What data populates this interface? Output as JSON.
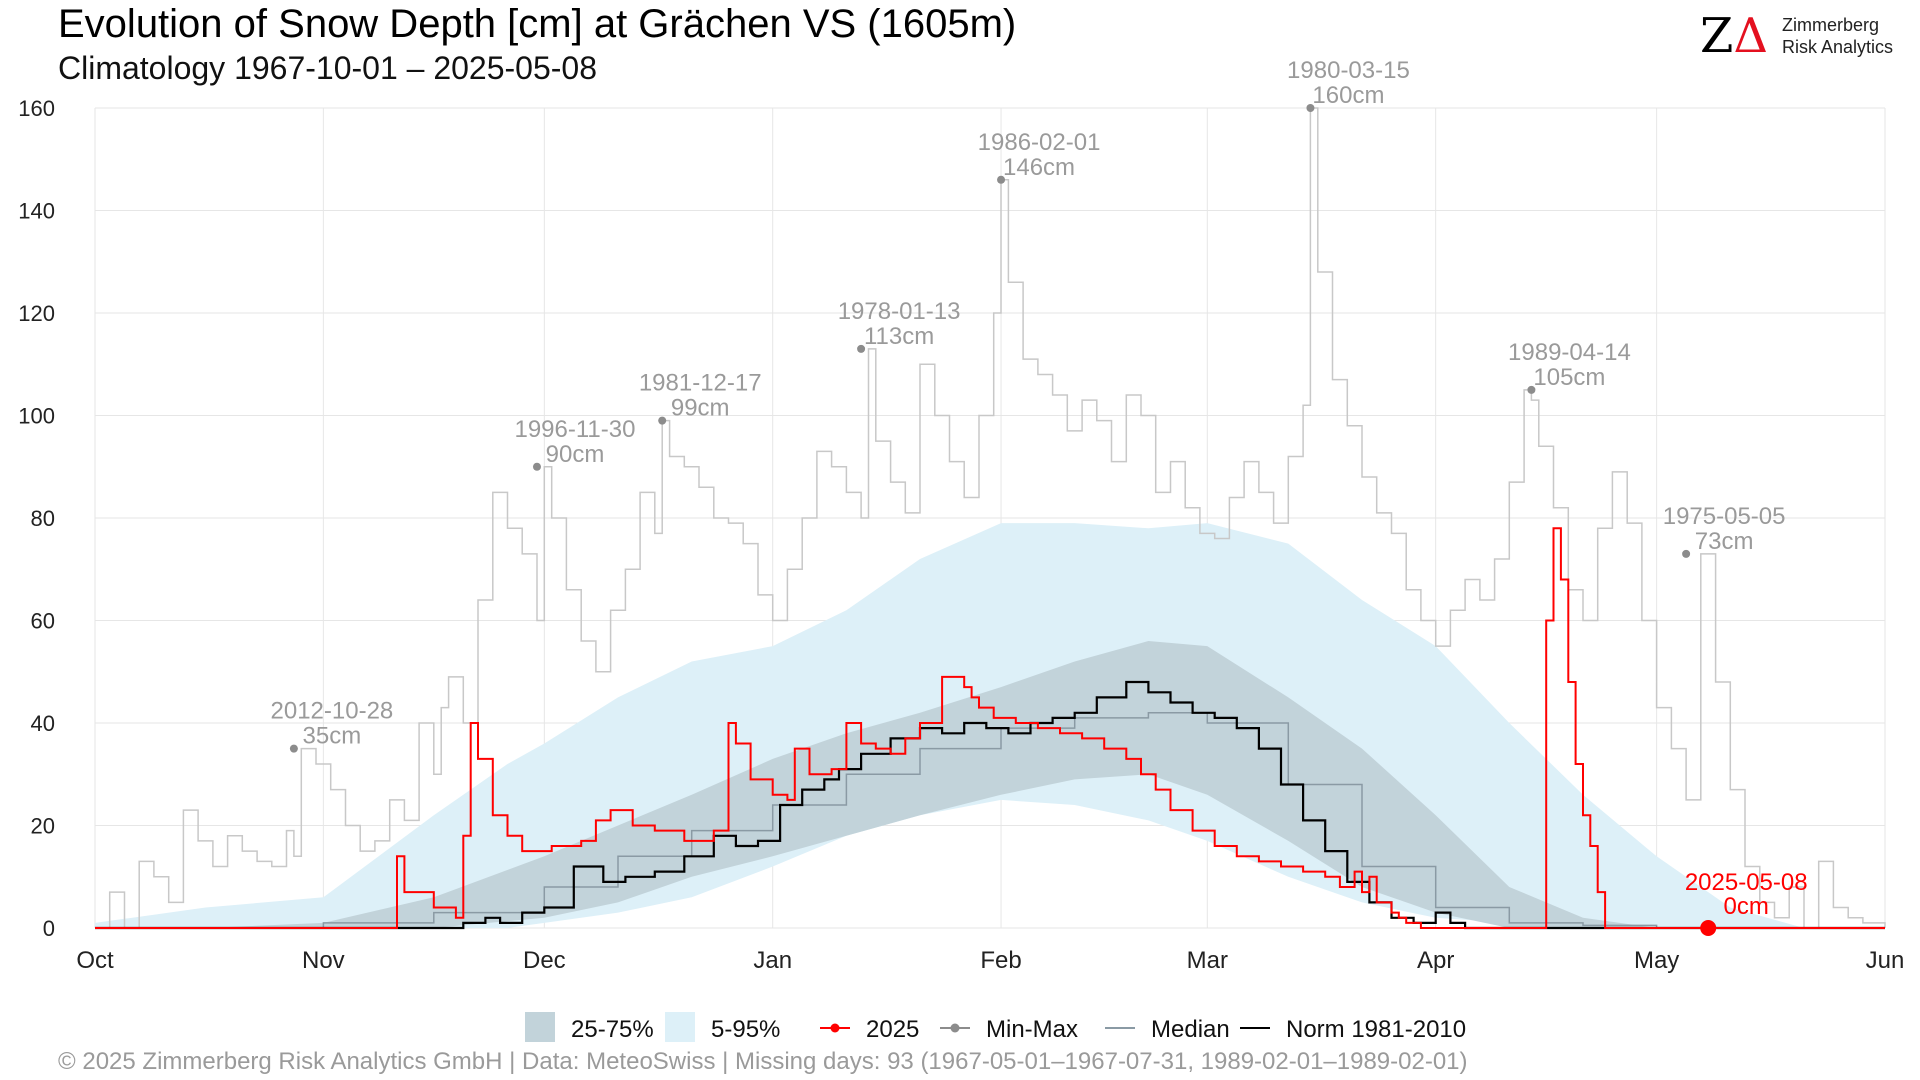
{
  "header": {
    "title": "Evolution of Snow Depth [cm] at Grächen  VS (1605m)",
    "subtitle": "Climatology 1967-10-01 – 2025-05-08"
  },
  "logo": {
    "mark_z": "Z",
    "mark_delta": "Δ",
    "line1": "Zimmerberg",
    "line2": "Risk Analytics"
  },
  "footer": "©  2025 Zimmerberg Risk Analytics GmbH | Data: MeteoSwiss | Missing days: 93 (1967-05-01–1967-07-31, 1989-02-01–1989-02-01)",
  "colors": {
    "band_2575": "#c2d3da",
    "band_595": "#ddf0f8",
    "current": "#ff0000",
    "minmax": "#c8c8c8",
    "minmax_dot": "#8c8c8c",
    "median": "#8a9aa4",
    "norm": "#000000",
    "annotation": "#9a9a9a",
    "grid": "#e6e6e6"
  },
  "chart_data": {
    "type": "line",
    "y_axis": {
      "min": 0,
      "max": 160,
      "ticks": [
        0,
        20,
        40,
        60,
        80,
        100,
        120,
        140,
        160
      ]
    },
    "x_axis": {
      "min": 0,
      "max": 243,
      "ticks": [
        {
          "label": "Oct",
          "day": 0
        },
        {
          "label": "Nov",
          "day": 31
        },
        {
          "label": "Dec",
          "day": 61
        },
        {
          "label": "Jan",
          "day": 92
        },
        {
          "label": "Feb",
          "day": 123
        },
        {
          "label": "Mar",
          "day": 151
        },
        {
          "label": "Apr",
          "day": 182
        },
        {
          "label": "May",
          "day": 212
        },
        {
          "label": "Jun",
          "day": 243
        }
      ]
    },
    "legend": {
      "placement": "bottom",
      "items": [
        {
          "label": "25-75%",
          "kind": "band",
          "color": "#c2d3da"
        },
        {
          "label": "5-95%",
          "kind": "band",
          "color": "#ddf0f8"
        },
        {
          "label": "2025",
          "kind": "line-dot",
          "color": "#ff0000"
        },
        {
          "label": "Min-Max",
          "kind": "line-dot",
          "color": "#8c8c8c"
        },
        {
          "label": "Median",
          "kind": "line",
          "color": "#8a9aa4"
        },
        {
          "label": "Norm 1981-2010",
          "kind": "line",
          "color": "#000000"
        }
      ]
    },
    "annotations": [
      {
        "date": "2012-10-28",
        "value": "35cm",
        "day": 27,
        "y": 35
      },
      {
        "date": "1996-11-30",
        "value": "90cm",
        "day": 60,
        "y": 90
      },
      {
        "date": "1981-12-17",
        "value": "99cm",
        "day": 77,
        "y": 99
      },
      {
        "date": "1978-01-13",
        "value": "113cm",
        "day": 104,
        "y": 113
      },
      {
        "date": "1986-02-01",
        "value": "146cm",
        "day": 123,
        "y": 146
      },
      {
        "date": "1980-03-15",
        "value": "160cm",
        "day": 165,
        "y": 160
      },
      {
        "date": "1989-04-14",
        "value": "105cm",
        "day": 195,
        "y": 105
      },
      {
        "date": "1975-05-05",
        "value": "73cm",
        "day": 216,
        "y": 73
      }
    ],
    "current_marker": {
      "date": "2025-05-08",
      "value": "0cm",
      "day": 219,
      "y": 0
    },
    "band_5_95": {
      "x": [
        0,
        15,
        31,
        46,
        56,
        61,
        71,
        81,
        92,
        102,
        112,
        123,
        133,
        143,
        151,
        162,
        172,
        182,
        192,
        202,
        212,
        222,
        232
      ],
      "low": [
        0,
        0,
        0,
        0,
        0,
        1,
        3,
        6,
        12,
        18,
        22,
        25,
        24,
        21,
        17,
        10,
        5,
        2,
        1,
        0,
        0,
        0,
        0
      ],
      "high": [
        1,
        4,
        6,
        22,
        32,
        36,
        45,
        52,
        55,
        62,
        72,
        79,
        79,
        78,
        79,
        75,
        64,
        55,
        40,
        26,
        14,
        4,
        0
      ]
    },
    "band_25_75": {
      "x": [
        0,
        15,
        31,
        46,
        61,
        71,
        81,
        92,
        102,
        112,
        123,
        133,
        143,
        151,
        162,
        172,
        182,
        192,
        202,
        212,
        222
      ],
      "low": [
        0,
        0,
        0,
        0,
        2,
        5,
        10,
        14,
        18,
        22,
        26,
        29,
        30,
        26,
        17,
        8,
        3,
        0,
        0,
        0,
        0
      ],
      "high": [
        0,
        0,
        1,
        6,
        14,
        20,
        26,
        33,
        38,
        42,
        47,
        52,
        56,
        55,
        45,
        35,
        22,
        8,
        2,
        0,
        0
      ]
    },
    "series": [
      {
        "name": "Median",
        "step": true,
        "x": [
          0,
          31,
          46,
          61,
          71,
          81,
          92,
          102,
          112,
          123,
          133,
          143,
          151,
          162,
          172,
          182,
          192,
          202,
          212,
          243
        ],
        "y": [
          0,
          1,
          3,
          8,
          14,
          19,
          24,
          30,
          35,
          39,
          41,
          42,
          40,
          28,
          12,
          4,
          1,
          0.5,
          0,
          0
        ]
      },
      {
        "name": "Norm 1981-2010",
        "step": true,
        "x": [
          0,
          50,
          53,
          55,
          58,
          61,
          65,
          69,
          72,
          76,
          80,
          84,
          87,
          90,
          93,
          96,
          99,
          101,
          104,
          108,
          112,
          115,
          118,
          121,
          124,
          127,
          130,
          133,
          136,
          140,
          143,
          146,
          149,
          152,
          155,
          158,
          161,
          164,
          167,
          170,
          173,
          176,
          179,
          182,
          184,
          186,
          243
        ],
        "y": [
          0,
          1,
          2,
          1,
          3,
          4,
          12,
          9,
          10,
          11,
          14,
          18,
          16,
          17,
          24,
          27,
          29,
          31,
          34,
          37,
          39,
          38,
          40,
          39,
          38,
          40,
          41,
          42,
          45,
          48,
          46,
          44,
          42,
          41,
          39,
          35,
          28,
          21,
          15,
          9,
          5,
          2,
          1,
          3,
          1,
          0,
          0
        ]
      },
      {
        "name": "2025",
        "step": true,
        "x": [
          0,
          41,
          42,
          46,
          49,
          50,
          51,
          52,
          54,
          56,
          58,
          62,
          66,
          68,
          70,
          73,
          76,
          80,
          84,
          86,
          87,
          89,
          92,
          94,
          95,
          97,
          100,
          102,
          104,
          106,
          108,
          110,
          112,
          115,
          118,
          119,
          120,
          122,
          125,
          128,
          131,
          134,
          137,
          140,
          142,
          144,
          146,
          149,
          152,
          155,
          158,
          161,
          164,
          167,
          169,
          171,
          172,
          173,
          174,
          176,
          177,
          178,
          180,
          190,
          197,
          198,
          199,
          200,
          201,
          202,
          203,
          204,
          205,
          243
        ],
        "y": [
          0,
          14,
          7,
          4,
          2,
          18,
          40,
          33,
          22,
          18,
          15,
          16,
          17,
          21,
          23,
          20,
          19,
          17,
          19,
          40,
          36,
          29,
          26,
          25,
          35,
          30,
          31,
          40,
          36,
          35,
          34,
          37,
          40,
          49,
          47,
          45,
          43,
          41,
          40,
          39,
          38,
          37,
          35,
          33,
          30,
          27,
          23,
          19,
          16,
          14,
          13,
          12,
          11,
          10,
          8,
          11,
          7,
          10,
          5,
          3,
          2,
          1,
          0,
          0,
          60,
          78,
          68,
          48,
          32,
          22,
          16,
          7,
          0,
          0
        ]
      },
      {
        "name": "Min-Max",
        "step": true,
        "x": [
          0,
          2,
          4,
          6,
          8,
          10,
          12,
          14,
          16,
          18,
          20,
          22,
          24,
          26,
          27,
          28,
          30,
          32,
          34,
          36,
          38,
          40,
          42,
          44,
          46,
          47,
          48,
          50,
          52,
          54,
          56,
          58,
          60,
          61,
          62,
          64,
          66,
          68,
          70,
          72,
          74,
          76,
          77,
          78,
          80,
          82,
          84,
          86,
          88,
          90,
          92,
          94,
          96,
          98,
          100,
          102,
          104,
          105,
          106,
          108,
          110,
          112,
          114,
          116,
          118,
          120,
          122,
          123,
          124,
          126,
          128,
          130,
          132,
          134,
          136,
          138,
          140,
          142,
          144,
          146,
          148,
          150,
          152,
          154,
          156,
          158,
          160,
          162,
          164,
          165,
          166,
          168,
          170,
          172,
          174,
          176,
          178,
          180,
          182,
          184,
          186,
          188,
          190,
          192,
          194,
          195,
          196,
          198,
          200,
          202,
          204,
          206,
          208,
          210,
          212,
          214,
          216,
          218,
          220,
          222,
          224,
          226,
          228,
          230,
          232,
          234,
          236,
          238,
          240,
          243
        ],
        "y": [
          0,
          7,
          0,
          13,
          10,
          5,
          23,
          17,
          12,
          18,
          15,
          13,
          12,
          19,
          14,
          35,
          32,
          27,
          20,
          15,
          17,
          25,
          21,
          40,
          30,
          43,
          49,
          40,
          64,
          85,
          78,
          73,
          60,
          90,
          80,
          66,
          56,
          50,
          62,
          70,
          85,
          77,
          99,
          92,
          90,
          86,
          80,
          79,
          75,
          65,
          60,
          70,
          80,
          93,
          90,
          85,
          80,
          113,
          95,
          87,
          81,
          110,
          100,
          91,
          84,
          100,
          120,
          146,
          126,
          111,
          108,
          104,
          97,
          103,
          99,
          91,
          104,
          100,
          85,
          91,
          82,
          77,
          76,
          84,
          91,
          85,
          79,
          92,
          102,
          160,
          128,
          107,
          98,
          88,
          81,
          77,
          66,
          60,
          55,
          62,
          68,
          64,
          72,
          87,
          105,
          103,
          94,
          82,
          66,
          60,
          78,
          89,
          79,
          60,
          43,
          35,
          25,
          73,
          48,
          27,
          12,
          5,
          2,
          8,
          0,
          13,
          4,
          2,
          1,
          0
        ]
      }
    ]
  }
}
